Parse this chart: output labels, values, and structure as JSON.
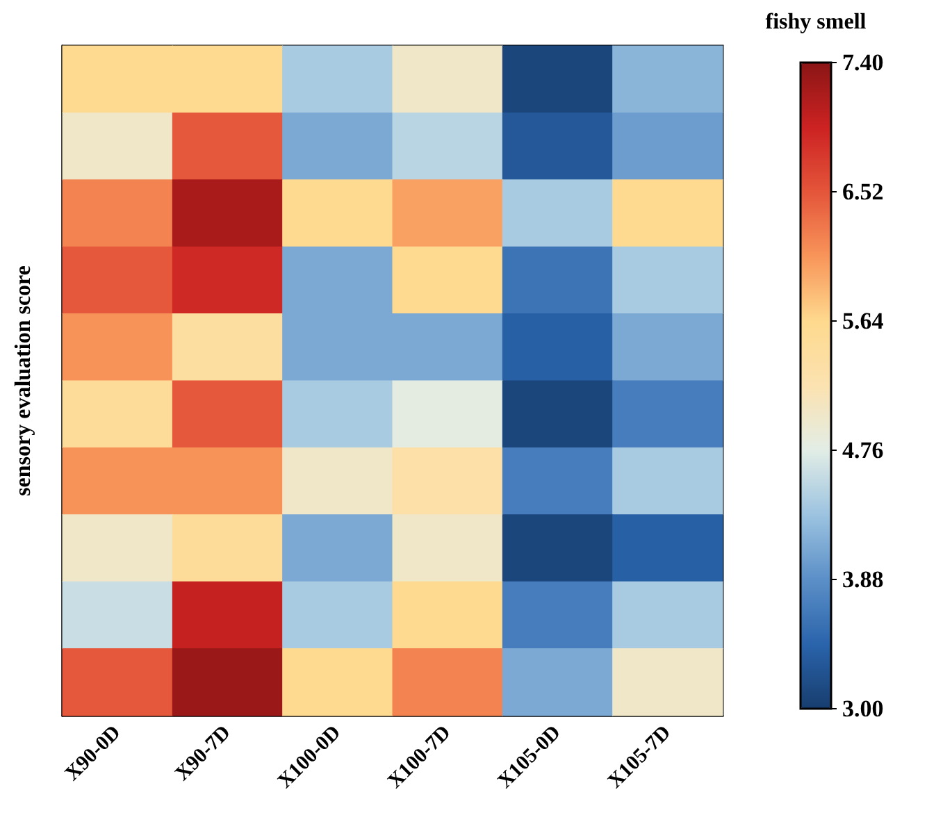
{
  "chart_data": {
    "type": "heatmap",
    "ylabel": "sensory evaluation score",
    "clabel": "fishy smell",
    "categories": [
      "X90-0D",
      "X90-7D",
      "X100-0D",
      "X100-7D",
      "X105-0D",
      "X105-7D"
    ],
    "y_categories": [
      null,
      null,
      null,
      null,
      null,
      null,
      null,
      null,
      null,
      null
    ],
    "cells": [
      [
        5.6,
        5.6,
        4.4,
        5.0,
        3.1,
        4.2
      ],
      [
        5.0,
        6.5,
        4.1,
        4.5,
        3.3,
        4.0
      ],
      [
        6.2,
        7.2,
        5.6,
        6.0,
        4.4,
        5.6
      ],
      [
        6.5,
        6.9,
        4.1,
        5.6,
        3.6,
        4.4
      ],
      [
        6.1,
        5.4,
        4.1,
        4.1,
        3.4,
        4.1
      ],
      [
        5.5,
        6.5,
        4.4,
        4.8,
        3.1,
        3.7
      ],
      [
        6.1,
        6.1,
        5.0,
        5.3,
        3.7,
        4.4
      ],
      [
        5.0,
        5.5,
        4.1,
        5.0,
        3.1,
        3.4
      ],
      [
        4.6,
        7.0,
        4.4,
        5.6,
        3.7,
        4.4
      ],
      [
        6.5,
        7.3,
        5.6,
        6.2,
        4.1,
        5.0
      ]
    ],
    "clim": [
      3.0,
      7.4
    ],
    "cticks": [
      {
        "value": 3.0,
        "label": "3.00"
      },
      {
        "value": 3.88,
        "label": "3.88"
      },
      {
        "value": 4.76,
        "label": "4.76"
      },
      {
        "value": 5.64,
        "label": "5.64"
      },
      {
        "value": 6.52,
        "label": "6.52"
      },
      {
        "value": 7.4,
        "label": "7.40"
      }
    ],
    "colors": [
      "#173d6e",
      "#2a64ab",
      "#5b8fc7",
      "#9cc3e0",
      "#e2ede6",
      "#fbe2b0",
      "#fed98e",
      "#f8955a",
      "#e4553a",
      "#cc2222",
      "#8b1515"
    ]
  }
}
